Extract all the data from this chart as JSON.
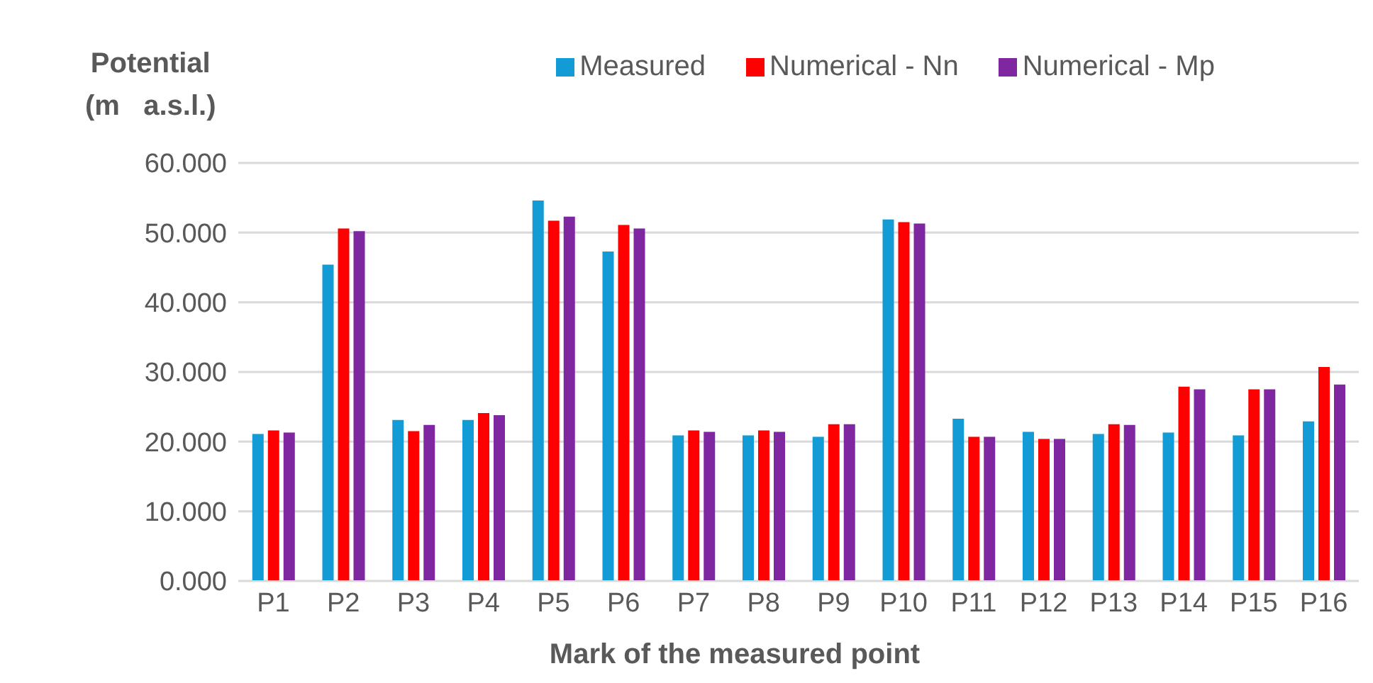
{
  "chart_data": {
    "type": "bar",
    "ylabel": "Potential\n(m   a.s.l.)",
    "xlabel": "Mark of the measured point",
    "categories": [
      "P1",
      "P2",
      "P3",
      "P4",
      "P5",
      "P6",
      "P7",
      "P8",
      "P9",
      "P10",
      "P11",
      "P12",
      "P13",
      "P14",
      "P15",
      "P16"
    ],
    "series": [
      {
        "name": "Measured",
        "color": "#139bd6",
        "values": [
          21.1,
          45.4,
          23.1,
          23.1,
          54.6,
          47.3,
          20.9,
          20.9,
          20.7,
          51.9,
          23.3,
          21.4,
          21.1,
          21.3,
          20.9,
          22.9
        ]
      },
      {
        "name": "Numerical - Nn",
        "color": "#ff0000",
        "values": [
          21.6,
          50.6,
          21.5,
          24.1,
          51.7,
          51.1,
          21.6,
          21.6,
          22.5,
          51.5,
          20.7,
          20.4,
          22.5,
          27.9,
          27.5,
          30.7
        ]
      },
      {
        "name": "Numerical - Mp",
        "color": "#7f27a0",
        "values": [
          21.3,
          50.2,
          22.4,
          23.8,
          52.3,
          50.6,
          21.4,
          21.4,
          22.5,
          51.3,
          20.7,
          20.4,
          22.4,
          27.5,
          27.5,
          28.2
        ]
      }
    ],
    "ylim": [
      0,
      60
    ],
    "yticks": [
      {
        "value": 0,
        "label": "0.000"
      },
      {
        "value": 10,
        "label": "10.000"
      },
      {
        "value": 20,
        "label": "20.000"
      },
      {
        "value": 30,
        "label": "30.000"
      },
      {
        "value": 40,
        "label": "40.000"
      },
      {
        "value": 50,
        "label": "50.000"
      },
      {
        "value": 60,
        "label": "60.000"
      }
    ],
    "grid": "y",
    "legend": "top"
  }
}
